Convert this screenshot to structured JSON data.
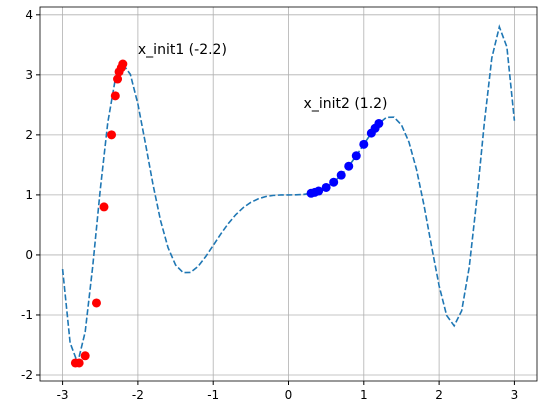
{
  "chart_data": {
    "type": "line",
    "xlim": [
      -3.3,
      3.3
    ],
    "ylim": [
      -2.1,
      4.13
    ],
    "xticks": [
      -3,
      -2,
      -1,
      0,
      1,
      2,
      3
    ],
    "yticks": [
      -2,
      -1,
      0,
      1,
      2,
      3,
      4
    ],
    "grid": true,
    "line": {
      "color": "#1f77b4",
      "dashed": true,
      "x": [
        -3.0,
        -2.9,
        -2.8,
        -2.7,
        -2.6,
        -2.5,
        -2.4,
        -2.3,
        -2.2,
        -2.1,
        -2.0,
        -1.9,
        -1.8,
        -1.7,
        -1.6,
        -1.5,
        -1.4,
        -1.3,
        -1.2,
        -1.1,
        -1.0,
        -0.9,
        -0.8,
        -0.7,
        -0.6,
        -0.5,
        -0.4,
        -0.3,
        -0.2,
        -0.1,
        0.0,
        0.1,
        0.2,
        0.3,
        0.4,
        0.5,
        0.6,
        0.7,
        0.8,
        0.9,
        1.0,
        1.1,
        1.2,
        1.3,
        1.4,
        1.5,
        1.6,
        1.7,
        1.8,
        1.9,
        2.0,
        2.1,
        2.2,
        2.3,
        2.4,
        2.5,
        2.6,
        2.7,
        2.8,
        2.9,
        3.0
      ],
      "y": [
        -0.236,
        -1.464,
        -1.8,
        -1.282,
        -0.193,
        1.083,
        2.204,
        2.929,
        3.181,
        3.008,
        2.514,
        1.859,
        1.177,
        0.577,
        0.122,
        -0.167,
        -0.295,
        -0.291,
        -0.19,
        -0.029,
        0.158,
        0.348,
        0.522,
        0.671,
        0.789,
        0.876,
        0.936,
        0.973,
        0.992,
        0.999,
        1,
        1.001,
        1.008,
        1.027,
        1.064,
        1.124,
        1.211,
        1.329,
        1.478,
        1.652,
        1.842,
        2.029,
        2.19,
        2.291,
        2.295,
        2.167,
        1.878,
        1.423,
        0.823,
        0.141,
        -0.514,
        -1.008,
        -1.181,
        -0.929,
        -0.204,
        0.917,
        2.193,
        3.282,
        3.8,
        3.464,
        2.236
      ]
    },
    "scatter": [
      {
        "color": "#ff0000",
        "x": [
          -2.2,
          -2.22,
          -2.25,
          -2.27,
          -2.3,
          -2.35,
          -2.45,
          -2.55,
          -2.7,
          -2.78,
          -2.83
        ],
        "y": [
          3.18,
          3.12,
          3.05,
          2.93,
          2.65,
          2.0,
          0.8,
          -0.8,
          -1.68,
          -1.8,
          -1.8
        ]
      },
      {
        "color": "#0000ff",
        "x": [
          0.3,
          0.35,
          0.4,
          0.5,
          0.6,
          0.7,
          0.8,
          0.9,
          1.0,
          1.1,
          1.15,
          1.2
        ],
        "y": [
          1.027,
          1.043,
          1.064,
          1.124,
          1.211,
          1.329,
          1.478,
          1.652,
          1.842,
          2.029,
          2.11,
          2.19
        ]
      }
    ],
    "annotations": [
      {
        "text": "x_init1 (-2.2)",
        "x": -2.0,
        "y": 3.35
      },
      {
        "text": "x_init2 (1.2)",
        "x": 0.2,
        "y": 2.45
      }
    ]
  }
}
